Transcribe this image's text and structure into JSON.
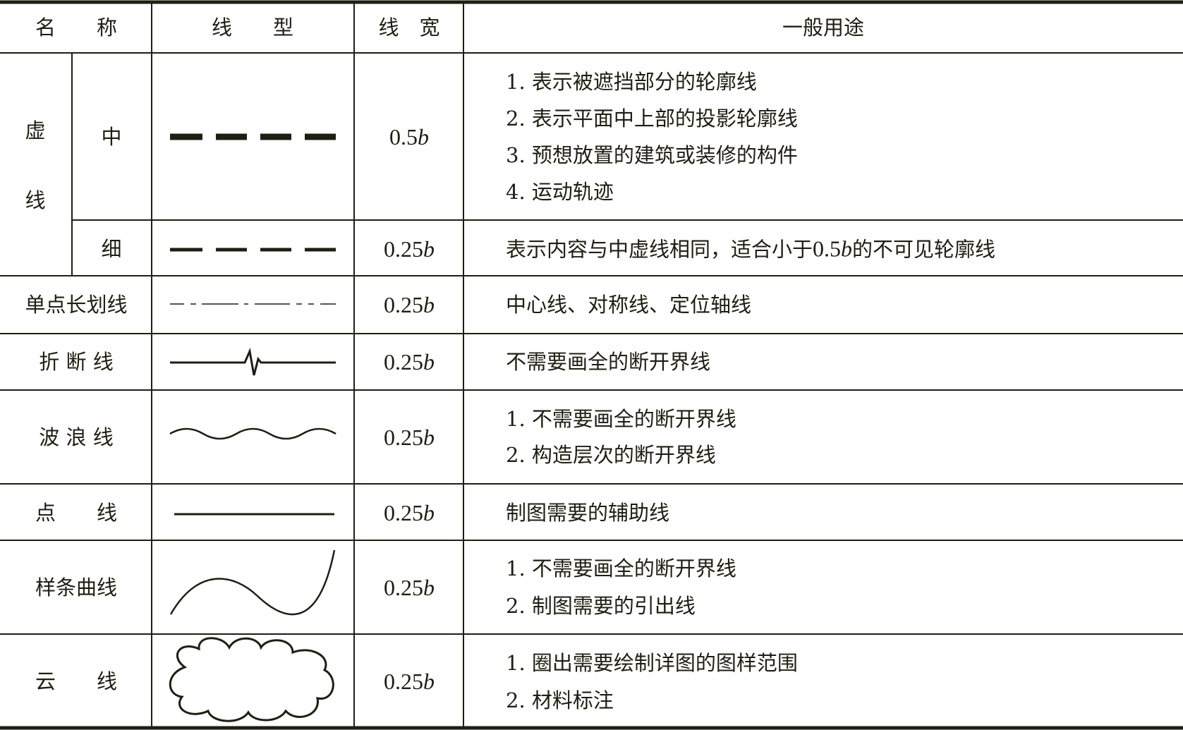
{
  "header": {
    "name": "名　　称",
    "type": "线　　型",
    "width": "线　宽",
    "usage": "一般用途"
  },
  "rows": [
    {
      "group": "虚\n线",
      "group_chars": [
        "虚",
        "线"
      ],
      "name": "中",
      "width_num": "0.5",
      "width_var": "b",
      "line_type": "thick-dashed",
      "usage": [
        "1. 表示被遮挡部分的轮廓线",
        "2. 表示平面中上部的投影轮廓线",
        "3. 预想放置的建筑或装修的构件",
        "4. 运动轨迹"
      ]
    },
    {
      "name": "细",
      "width_num": "0.25",
      "width_var": "b",
      "line_type": "thin-dashed",
      "usage_parts": [
        "表示内容与中虚线相同，适合小于",
        "0.5",
        "b",
        "的不可见轮廓线"
      ]
    },
    {
      "name": "单点长划线",
      "width_num": "0.25",
      "width_var": "b",
      "line_type": "dash-dot",
      "usage": [
        "中心线、对称线、定位轴线"
      ]
    },
    {
      "name": "折 断 线",
      "width_num": "0.25",
      "width_var": "b",
      "line_type": "break-line",
      "usage": [
        "不需要画全的断开界线"
      ]
    },
    {
      "name": "波 浪 线",
      "width_num": "0.25",
      "width_var": "b",
      "line_type": "wave",
      "usage": [
        "1. 不需要画全的断开界线",
        "2. 构造层次的断开界线"
      ]
    },
    {
      "name": "点　　线",
      "width_num": "0.25",
      "width_var": "b",
      "line_type": "solid",
      "usage": [
        "制图需要的辅助线"
      ]
    },
    {
      "name": "样条曲线",
      "width_num": "0.25",
      "width_var": "b",
      "line_type": "spline",
      "usage": [
        "1. 不需要画全的断开界线",
        "2. 制图需要的引出线"
      ]
    },
    {
      "name": "云　　线",
      "width_num": "0.25",
      "width_var": "b",
      "line_type": "cloud",
      "usage": [
        "1. 圈出需要绘制详图的图样范围",
        "2. 材料标注"
      ]
    }
  ],
  "colors": {
    "ink": "#1f1e12",
    "background": "#ffffff"
  }
}
